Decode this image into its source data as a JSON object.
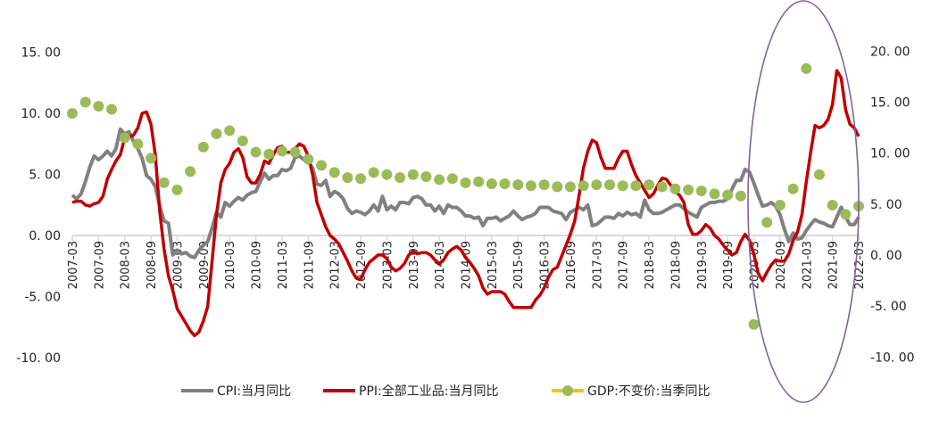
{
  "chart_data": {
    "type": "line",
    "title": "",
    "x_start": "2007-03",
    "x_end": "2022-03",
    "x_tick_labels": [
      "2007-03",
      "2007-09",
      "2008-03",
      "2008-09",
      "2009-03",
      "2009-09",
      "2010-03",
      "2010-09",
      "2011-03",
      "2011-09",
      "2012-03",
      "2012-09",
      "2013-03",
      "2013-09",
      "2014-03",
      "2014-09",
      "2015-03",
      "2015-09",
      "2016-03",
      "2016-09",
      "2017-03",
      "2017-09",
      "2018-03",
      "2018-09",
      "2019-03",
      "2019-09",
      "2020-03",
      "2020-09",
      "2021-03",
      "2021-09",
      "2022-03"
    ],
    "left_axis": {
      "ylim": [
        -10,
        15
      ],
      "ticks": [
        "15. 00",
        "10. 00",
        "5. 00",
        "0. 00",
        "-5. 00",
        "-10. 00"
      ],
      "tick_values": [
        15,
        10,
        5,
        0,
        -5,
        -10
      ]
    },
    "right_axis": {
      "ylim": [
        -10,
        20
      ],
      "ticks": [
        "20. 00",
        "15. 00",
        "10. 00",
        "5. 00",
        "0. 00",
        "-5. 00",
        "-10. 00"
      ],
      "tick_values": [
        20,
        15,
        10,
        5,
        0,
        -5,
        -10
      ]
    },
    "series": [
      {
        "name": "CPI:当月同比",
        "axis": "left",
        "kind": "line",
        "color": "#808080",
        "frequency": "monthly",
        "values": [
          3.3,
          3.0,
          3.4,
          4.4,
          5.6,
          6.5,
          6.2,
          6.5,
          6.9,
          6.5,
          7.1,
          8.7,
          8.3,
          8.5,
          7.7,
          7.1,
          6.3,
          4.9,
          4.6,
          4.0,
          2.4,
          1.2,
          1.0,
          -1.6,
          -1.2,
          -1.5,
          -1.4,
          -1.7,
          -1.8,
          -1.2,
          -0.8,
          -0.5,
          0.6,
          1.9,
          1.5,
          2.7,
          2.4,
          2.8,
          3.1,
          2.9,
          3.3,
          3.5,
          3.6,
          4.4,
          5.1,
          4.6,
          4.9,
          4.9,
          5.4,
          5.3,
          5.5,
          6.4,
          6.5,
          6.2,
          6.1,
          5.5,
          4.2,
          4.1,
          4.5,
          3.2,
          3.6,
          3.4,
          3.0,
          2.2,
          1.8,
          2.0,
          1.9,
          1.7,
          2.0,
          2.5,
          2.0,
          3.2,
          2.1,
          2.4,
          2.1,
          2.7,
          2.7,
          2.6,
          3.1,
          3.2,
          3.0,
          2.5,
          2.5,
          2.0,
          2.4,
          1.8,
          2.5,
          2.3,
          2.3,
          2.0,
          1.6,
          1.6,
          1.4,
          1.5,
          0.8,
          1.4,
          1.4,
          1.5,
          1.2,
          1.4,
          1.6,
          2.0,
          1.6,
          1.3,
          1.5,
          1.6,
          1.8,
          2.3,
          2.3,
          2.3,
          2.0,
          1.9,
          1.8,
          1.3,
          1.9,
          2.1,
          2.3,
          2.1,
          2.5,
          0.8,
          0.9,
          1.2,
          1.5,
          1.5,
          1.4,
          1.8,
          1.6,
          1.9,
          1.7,
          1.8,
          1.5,
          2.9,
          2.1,
          1.8,
          1.8,
          1.9,
          2.1,
          2.3,
          2.5,
          2.5,
          2.2,
          1.9,
          1.7,
          1.5,
          2.3,
          2.5,
          2.7,
          2.7,
          2.8,
          2.8,
          3.0,
          3.8,
          4.5,
          4.5,
          5.4,
          5.2,
          4.3,
          3.3,
          2.4,
          2.5,
          2.7,
          2.4,
          1.7,
          0.5,
          -0.5,
          0.2,
          -0.3,
          -0.2,
          0.4,
          0.9,
          1.3,
          1.1,
          1.0,
          0.8,
          0.7,
          1.5,
          2.3,
          1.5,
          0.9,
          0.9,
          1.5
        ]
      },
      {
        "name": "PPI:全部工业品:当月同比",
        "axis": "left",
        "kind": "line",
        "color": "#c00000",
        "frequency": "monthly",
        "values": [
          2.7,
          2.8,
          2.8,
          2.5,
          2.4,
          2.6,
          2.7,
          3.2,
          4.6,
          5.4,
          6.1,
          6.6,
          8.0,
          8.1,
          8.2,
          8.8,
          10.0,
          10.1,
          9.1,
          6.6,
          2.0,
          -1.1,
          -3.3,
          -4.5,
          -6.0,
          -6.6,
          -7.2,
          -7.8,
          -8.2,
          -7.9,
          -7.0,
          -5.8,
          -2.1,
          1.7,
          4.3,
          5.4,
          5.9,
          6.8,
          7.1,
          6.4,
          4.8,
          4.3,
          4.3,
          5.0,
          6.1,
          5.9,
          6.6,
          7.2,
          7.3,
          6.8,
          6.8,
          7.1,
          7.5,
          7.3,
          6.5,
          5.0,
          2.7,
          1.7,
          0.7,
          0.0,
          -0.3,
          -0.7,
          -1.4,
          -2.1,
          -2.9,
          -3.5,
          -3.6,
          -2.8,
          -2.2,
          -1.9,
          -1.6,
          -1.6,
          -1.9,
          -2.6,
          -2.9,
          -2.7,
          -2.3,
          -1.6,
          -1.3,
          -1.5,
          -1.4,
          -1.4,
          -1.6,
          -2.0,
          -2.3,
          -2.0,
          -1.4,
          -1.1,
          -0.9,
          -1.2,
          -1.8,
          -2.2,
          -2.7,
          -3.3,
          -4.3,
          -4.8,
          -4.6,
          -4.6,
          -4.6,
          -4.8,
          -5.4,
          -5.9,
          -5.9,
          -5.9,
          -5.9,
          -5.9,
          -5.3,
          -4.9,
          -4.3,
          -3.4,
          -2.8,
          -2.6,
          -1.7,
          -0.8,
          0.1,
          1.2,
          3.3,
          5.5,
          6.9,
          7.8,
          7.6,
          6.4,
          5.5,
          5.5,
          5.5,
          6.3,
          6.9,
          6.9,
          5.8,
          4.9,
          4.3,
          3.7,
          3.1,
          3.4,
          4.1,
          4.7,
          4.6,
          4.1,
          3.6,
          3.3,
          2.7,
          0.9,
          0.1,
          0.1,
          0.4,
          0.9,
          0.6,
          0.0,
          -0.3,
          -0.8,
          -1.2,
          -1.6,
          -1.4,
          -0.5,
          0.1,
          -0.4,
          -1.5,
          -3.1,
          -3.7,
          -3.0,
          -2.4,
          -2.0,
          -2.1,
          -2.1,
          -1.5,
          -0.4,
          0.3,
          1.7,
          4.4,
          6.8,
          9.0,
          8.8,
          9.0,
          9.5,
          10.7,
          13.5,
          12.9,
          10.3,
          9.1,
          8.8,
          8.1
        ]
      },
      {
        "name": "GDP:不变价:当季同比",
        "axis": "right",
        "kind": "scatter",
        "color": "#9bbb59",
        "legend_line_color": "#ffc000",
        "frequency": "quarterly",
        "values": [
          13.9,
          15.0,
          14.6,
          14.3,
          11.5,
          10.9,
          9.5,
          7.1,
          6.4,
          8.2,
          10.6,
          11.9,
          12.2,
          11.2,
          10.1,
          9.9,
          10.2,
          10.1,
          9.4,
          8.8,
          8.1,
          7.6,
          7.5,
          8.1,
          7.9,
          7.6,
          7.9,
          7.7,
          7.4,
          7.5,
          7.1,
          7.2,
          7.0,
          7.0,
          6.9,
          6.8,
          6.9,
          6.7,
          6.7,
          6.8,
          6.9,
          6.9,
          6.8,
          6.8,
          6.9,
          6.7,
          6.5,
          6.4,
          6.3,
          6.0,
          5.9,
          5.8,
          -6.8,
          3.2,
          4.9,
          6.5,
          18.3,
          7.9,
          4.9,
          4.0,
          4.8
        ]
      }
    ],
    "annotation": {
      "shape": "ellipse",
      "color": "#8064a2",
      "highlights": "2020-03 to 2022-03"
    },
    "legend_placement": "bottom-center",
    "grid": false
  }
}
